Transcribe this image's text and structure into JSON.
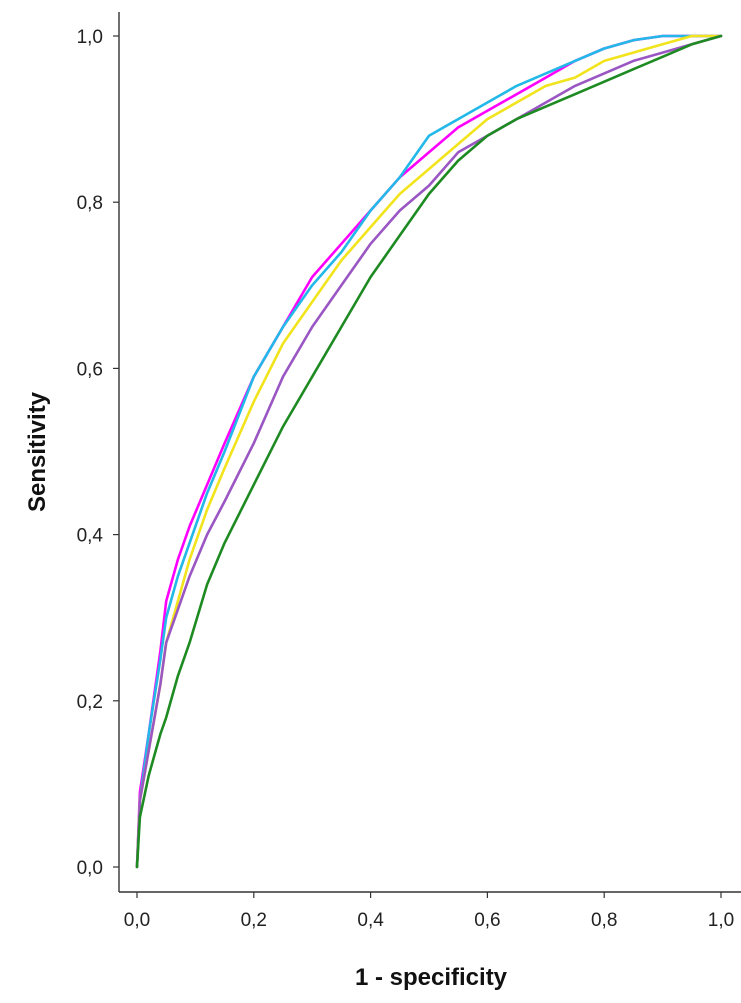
{
  "chart_data": {
    "type": "line",
    "title": "",
    "xlabel": "1 - specificity",
    "ylabel": "Sensitivity",
    "xlim": [
      0,
      1
    ],
    "ylim": [
      0,
      1
    ],
    "x_ticks": [
      0,
      0.2,
      0.4,
      0.6,
      0.8,
      1.0
    ],
    "y_ticks": [
      0,
      0.2,
      0.4,
      0.6,
      0.8,
      1.0
    ],
    "x_tick_labels": [
      "0,0",
      "0,2",
      "0,4",
      "0,6",
      "0,8",
      "1,0"
    ],
    "y_tick_labels": [
      "0,0",
      "0,2",
      "0,4",
      "0,6",
      "0,8",
      "1,0"
    ],
    "grid": false,
    "legend": "none",
    "series": [
      {
        "color": "#ff00ff",
        "points": [
          [
            0,
            0
          ],
          [
            0.005,
            0.09
          ],
          [
            0.02,
            0.16
          ],
          [
            0.04,
            0.26
          ],
          [
            0.05,
            0.32
          ],
          [
            0.07,
            0.37
          ],
          [
            0.09,
            0.41
          ],
          [
            0.12,
            0.46
          ],
          [
            0.15,
            0.51
          ],
          [
            0.2,
            0.59
          ],
          [
            0.25,
            0.65
          ],
          [
            0.3,
            0.71
          ],
          [
            0.35,
            0.75
          ],
          [
            0.4,
            0.79
          ],
          [
            0.45,
            0.83
          ],
          [
            0.5,
            0.86
          ],
          [
            0.55,
            0.89
          ],
          [
            0.6,
            0.91
          ],
          [
            0.65,
            0.93
          ],
          [
            0.7,
            0.95
          ],
          [
            0.75,
            0.97
          ],
          [
            0.8,
            0.985
          ],
          [
            0.85,
            0.995
          ],
          [
            0.9,
            1.0
          ],
          [
            1.0,
            1.0
          ]
        ]
      },
      {
        "color": "#22b8e8",
        "points": [
          [
            0,
            0
          ],
          [
            0.005,
            0.08
          ],
          [
            0.02,
            0.16
          ],
          [
            0.04,
            0.25
          ],
          [
            0.05,
            0.3
          ],
          [
            0.07,
            0.35
          ],
          [
            0.09,
            0.39
          ],
          [
            0.12,
            0.45
          ],
          [
            0.15,
            0.5
          ],
          [
            0.2,
            0.59
          ],
          [
            0.25,
            0.65
          ],
          [
            0.3,
            0.7
          ],
          [
            0.35,
            0.74
          ],
          [
            0.4,
            0.79
          ],
          [
            0.45,
            0.83
          ],
          [
            0.5,
            0.88
          ],
          [
            0.55,
            0.9
          ],
          [
            0.6,
            0.92
          ],
          [
            0.65,
            0.94
          ],
          [
            0.7,
            0.955
          ],
          [
            0.75,
            0.97
          ],
          [
            0.8,
            0.985
          ],
          [
            0.85,
            0.995
          ],
          [
            0.9,
            1.0
          ],
          [
            1.0,
            1.0
          ]
        ]
      },
      {
        "color": "#f2e41c",
        "points": [
          [
            0,
            0
          ],
          [
            0.005,
            0.08
          ],
          [
            0.02,
            0.14
          ],
          [
            0.04,
            0.22
          ],
          [
            0.05,
            0.27
          ],
          [
            0.07,
            0.32
          ],
          [
            0.09,
            0.37
          ],
          [
            0.12,
            0.43
          ],
          [
            0.15,
            0.48
          ],
          [
            0.2,
            0.56
          ],
          [
            0.25,
            0.63
          ],
          [
            0.3,
            0.68
          ],
          [
            0.35,
            0.73
          ],
          [
            0.4,
            0.77
          ],
          [
            0.45,
            0.81
          ],
          [
            0.5,
            0.84
          ],
          [
            0.55,
            0.87
          ],
          [
            0.6,
            0.9
          ],
          [
            0.65,
            0.92
          ],
          [
            0.7,
            0.94
          ],
          [
            0.75,
            0.95
          ],
          [
            0.8,
            0.97
          ],
          [
            0.85,
            0.98
          ],
          [
            0.9,
            0.99
          ],
          [
            0.95,
            1.0
          ],
          [
            1.0,
            1.0
          ]
        ]
      },
      {
        "color": "#9a56c2",
        "points": [
          [
            0,
            0
          ],
          [
            0.005,
            0.08
          ],
          [
            0.02,
            0.14
          ],
          [
            0.04,
            0.22
          ],
          [
            0.05,
            0.27
          ],
          [
            0.07,
            0.31
          ],
          [
            0.09,
            0.35
          ],
          [
            0.12,
            0.4
          ],
          [
            0.15,
            0.44
          ],
          [
            0.2,
            0.51
          ],
          [
            0.25,
            0.59
          ],
          [
            0.3,
            0.65
          ],
          [
            0.35,
            0.7
          ],
          [
            0.4,
            0.75
          ],
          [
            0.45,
            0.79
          ],
          [
            0.5,
            0.82
          ],
          [
            0.55,
            0.86
          ],
          [
            0.6,
            0.88
          ],
          [
            0.65,
            0.9
          ],
          [
            0.7,
            0.92
          ],
          [
            0.75,
            0.94
          ],
          [
            0.8,
            0.955
          ],
          [
            0.85,
            0.97
          ],
          [
            0.9,
            0.98
          ],
          [
            0.95,
            0.99
          ],
          [
            1.0,
            1.0
          ]
        ]
      },
      {
        "color": "#1e8a22",
        "points": [
          [
            0,
            0
          ],
          [
            0.005,
            0.06
          ],
          [
            0.02,
            0.11
          ],
          [
            0.04,
            0.16
          ],
          [
            0.05,
            0.18
          ],
          [
            0.07,
            0.23
          ],
          [
            0.09,
            0.27
          ],
          [
            0.12,
            0.34
          ],
          [
            0.15,
            0.39
          ],
          [
            0.2,
            0.46
          ],
          [
            0.25,
            0.53
          ],
          [
            0.3,
            0.59
          ],
          [
            0.35,
            0.65
          ],
          [
            0.4,
            0.71
          ],
          [
            0.45,
            0.76
          ],
          [
            0.5,
            0.81
          ],
          [
            0.55,
            0.85
          ],
          [
            0.6,
            0.88
          ],
          [
            0.65,
            0.9
          ],
          [
            0.7,
            0.915
          ],
          [
            0.75,
            0.93
          ],
          [
            0.8,
            0.945
          ],
          [
            0.85,
            0.96
          ],
          [
            0.9,
            0.975
          ],
          [
            0.95,
            0.99
          ],
          [
            1.0,
            1.0
          ]
        ]
      }
    ]
  }
}
